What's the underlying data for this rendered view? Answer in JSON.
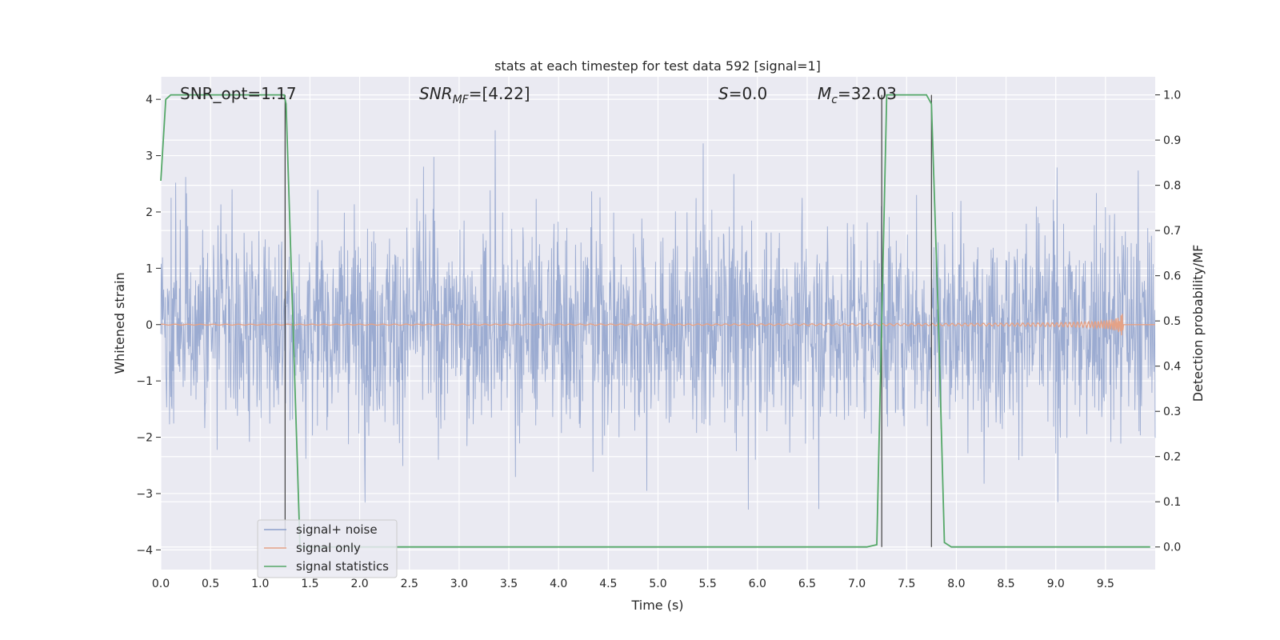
{
  "chart_data": {
    "type": "line",
    "title": "stats at each timestep for test data 592 [signal=1]",
    "xlabel": "Time (s)",
    "ylabel": "Whitened strain",
    "ylabel_right": "Detection probability/MF",
    "xlim": [
      0.0,
      10.0
    ],
    "ylim": [
      -4.35,
      4.4
    ],
    "ylim_right": [
      -0.05,
      1.04
    ],
    "x_ticks": [
      "0.0",
      "0.5",
      "1.0",
      "1.5",
      "2.0",
      "2.5",
      "3.0",
      "3.5",
      "4.0",
      "4.5",
      "5.0",
      "5.5",
      "6.0",
      "6.5",
      "7.0",
      "7.5",
      "8.0",
      "8.5",
      "9.0",
      "9.5"
    ],
    "y_ticks": [
      "4",
      "3",
      "2",
      "1",
      "0",
      "−1",
      "−2",
      "−3",
      "−4"
    ],
    "y_ticks_right": [
      "1.0",
      "0.9",
      "0.8",
      "0.7",
      "0.6",
      "0.5",
      "0.4",
      "0.3",
      "0.2",
      "0.1",
      "0.0"
    ],
    "grid": true,
    "legend_position": "lower-left",
    "annotations": {
      "snr_opt": "SNR_opt=1.17",
      "snr_mf_sym": "SNR",
      "snr_mf_sub": "MF",
      "snr_mf_val": "=[4.22]",
      "s_sym": "S",
      "s_val": "=0.0",
      "mc_sym": "M",
      "mc_sub": "c",
      "mc_val": "=32.03"
    },
    "series": [
      {
        "name": "signal+ noise",
        "color": "#8da0cb",
        "kind": "whitened noise, approx. range",
        "ymin": -3.65,
        "ymax": 3.45
      },
      {
        "name": "signal only",
        "color": "#e5a286",
        "kind": "chirp signal",
        "peak_time": 9.68,
        "peak_amplitude": 0.3
      },
      {
        "name": "signal statistics",
        "color": "#55a868",
        "axis": "right",
        "x": [
          0.0,
          0.05,
          0.1,
          1.24,
          1.26,
          1.4,
          7.1,
          7.2,
          7.3,
          7.7,
          7.75,
          7.82,
          7.88,
          7.95,
          9.95
        ],
        "y": [
          0.81,
          0.99,
          1.0,
          1.0,
          0.98,
          0.0,
          0.0,
          0.005,
          1.0,
          1.0,
          0.98,
          0.5,
          0.01,
          0.0,
          0.0
        ]
      }
    ],
    "vertical_lines": [
      1.25,
      7.25,
      7.75
    ]
  }
}
